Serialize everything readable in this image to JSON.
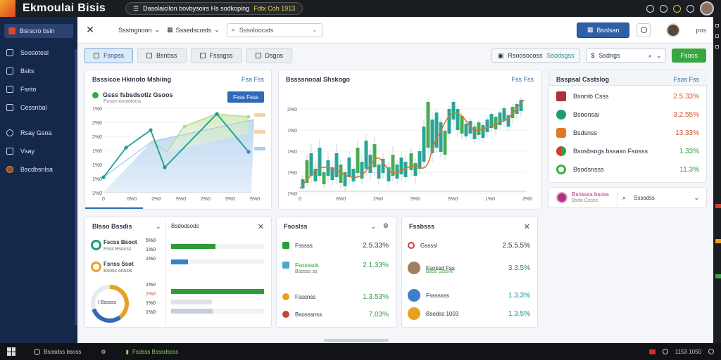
{
  "titlebar": {
    "app_title": "Ekmoulai Bisis",
    "center_text": "Dasolaicilon bovbysoirs Hs sodkoping",
    "center_highlight": "Fdtx Coh 1913"
  },
  "sidebar": {
    "brand": "Bsrscro bsin",
    "items": [
      {
        "label": "Soosoteal",
        "icon": "chart-icon"
      },
      {
        "label": "Bsits",
        "icon": "grid-icon"
      },
      {
        "label": "Fsnto",
        "icon": "folder-icon"
      },
      {
        "label": "Cessnbal",
        "icon": "calendar-icon"
      },
      {
        "label": "Rsay Gsoa",
        "icon": "clock-icon"
      },
      {
        "label": "Vsay",
        "icon": "play-icon"
      },
      {
        "label": "Bscdbsnlsa",
        "icon": "settings-icon"
      }
    ]
  },
  "topbar": {
    "dropdown1": "Ssstognoon",
    "dropdown2": "Sssedscosts",
    "search_placeholder": "Sssoloocats",
    "primary_button": "Bsnlsan",
    "more": "pos"
  },
  "tabs": [
    {
      "label": "Fsnpss",
      "active": true
    },
    {
      "label": "Bsnbss",
      "active": false
    },
    {
      "label": "Fsssgss",
      "active": false
    },
    {
      "label": "Dsgos",
      "active": false
    }
  ],
  "tabs_right": {
    "filter_label": "Rsoosocoss",
    "filter_value": "Ssodsgss",
    "search_text": "Ssdngs",
    "go_button": "Fsoos"
  },
  "line_card": {
    "title": "Bsssicoe Hkinoto Mshiing",
    "link": "Fsa Fss",
    "subtitle": "Gsss fsbsdsotiz Gsoos",
    "subtitle_small": "Poson oostotocis",
    "button": "Fsss Fsss",
    "y_ticks": [
      "1%0",
      "2%0",
      "2%0",
      "1%0",
      "1%0",
      "1%0",
      "1%0"
    ],
    "x_ticks": [
      "0",
      "0%0",
      "2%0",
      "5%0",
      "2%0",
      "5%0",
      "5%0"
    ],
    "legend": [
      "#ffcc88",
      "#ffcc88",
      "#aaccee"
    ]
  },
  "candle_card": {
    "title": "Bssssnooal Shskogo",
    "link": "Fss Fss",
    "y_ticks": [
      "2%0",
      "1%0",
      "1%0",
      "1%0",
      "1%0",
      "1%0"
    ],
    "x_ticks": [
      "0",
      "0%0",
      "2%0",
      "5%0",
      "5%0",
      "1%0",
      "2%0"
    ]
  },
  "right_list": {
    "title": "Bsspsal Csstslog",
    "link": "Fsos Fss",
    "items": [
      {
        "label": "Bsorsb Csss",
        "value": "2.5.33%",
        "color": "#b03040",
        "trend": "down"
      },
      {
        "label": "Bsoonsai",
        "value": "3.2.55%",
        "color": "#1b9e6a",
        "trend": "down"
      },
      {
        "label": "Bsdsnss",
        "value": "13.33%",
        "color": "#e07a2a",
        "trend": "down"
      },
      {
        "label": "Bsosbsngs bssasn Fsosss",
        "value": "1.33%",
        "color": "#30a040",
        "trend": "up"
      },
      {
        "label": "Bsodsnsss",
        "value": "11.3%",
        "color": "#38b048",
        "trend": "up"
      }
    ],
    "user_name": "Bsnssss bsoss",
    "user_sub": "Bsdo Cssss",
    "user_action": "Ssssdss"
  },
  "ring_card": {
    "title": "Blsso Bssdis",
    "items": [
      {
        "label": "Fscss Bsoot",
        "sub": "Fsss Bsocss",
        "color": "#1b9e7a"
      },
      {
        "label": "Fsnss Ssot",
        "sub": "Bsoss oossis",
        "color": "#e8a020"
      }
    ],
    "donut_label": "I Bsssss",
    "donut_ticks": [
      "5%0",
      "1%0",
      "1%0",
      "1%0",
      "1%0",
      "1%0",
      "1%0"
    ]
  },
  "progress_card": {
    "title": "Bsdodsods",
    "bars": [
      0.48,
      0.18,
      1.0,
      0.45
    ],
    "bar_colors": [
      "#2c9b38",
      "#3d7fc8",
      "#2c9b38",
      "#c8ced8"
    ]
  },
  "stats_card1": {
    "title": "Fsoslss",
    "items": [
      {
        "label": "Fsssss",
        "value": "2.5.33%",
        "color": "#2c9b38",
        "trend": "neutral"
      },
      {
        "label": "Fsosssds",
        "sub": "Bsosss ss",
        "value": "2.1.33%",
        "color": "#4aa8c8",
        "trend": "up"
      },
      {
        "label": "Fsssnss",
        "value": "1.3.53%",
        "color": "#e8a020",
        "trend": "up"
      },
      {
        "label": "Bsosssnss",
        "value": "7.03%",
        "color": "#d04030",
        "trend": "up"
      }
    ]
  },
  "stats_card2": {
    "title": "Fssbsss",
    "items": [
      {
        "label": "Gssssl",
        "value": "2.5.5.5%",
        "color": "#c84040",
        "trend": "neutral"
      },
      {
        "label": "Fsossd Fss",
        "sub": "Bsos Ssss%",
        "value": "3.3.5%",
        "color": "#a08060",
        "trend": "teal"
      },
      {
        "label": "Fsssssss",
        "value": "1.3.3%",
        "color": "#3d7fc8",
        "trend": "teal"
      },
      {
        "label": "Bsodss 1003",
        "value": "1.3.5%",
        "color": "#e8a020",
        "trend": "teal"
      }
    ]
  },
  "taskbar": {
    "item1": "Bsosdss bsoss",
    "item2": "Fsdsss Bsssdssss",
    "clock": "1153 1050"
  },
  "colors": {
    "sidebar": "#14284b",
    "accent": "#2e5fa8",
    "teal": "#1b9e8e",
    "green": "#3aa642",
    "orange": "#e07a2a"
  }
}
